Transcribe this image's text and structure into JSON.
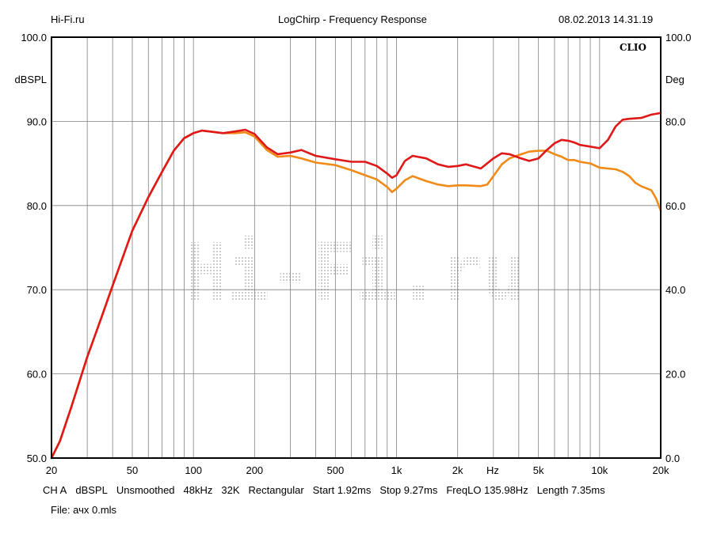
{
  "header": {
    "site": "Hi-Fi.ru",
    "title": "LogChirp - Frequency Response",
    "datetime": "08.02.2013 14.31.19"
  },
  "watermark": {
    "text": "Hi-Fi.ru"
  },
  "footer": {
    "params": [
      "CH A",
      "dBSPL",
      "Unsmoothed",
      "48kHz",
      "32K",
      "Rectangular",
      "Start 1.92ms",
      "Stop 9.27ms",
      "FreqLO 135.98Hz",
      "Length 7.35ms"
    ],
    "file": "File: ачх 0.mls"
  },
  "chart_data": {
    "type": "line",
    "brand_label": "CLIO",
    "xscale": "log",
    "xlim": [
      20,
      20000
    ],
    "ylim": [
      50,
      100
    ],
    "y2lim": [
      0,
      100
    ],
    "ylabel": "dBSPL",
    "y2label": "Deg",
    "xunit_label": "Hz",
    "grid": true,
    "y_ticks": [
      {
        "value": 50,
        "label": "50.0"
      },
      {
        "value": 60,
        "label": "60.0"
      },
      {
        "value": 70,
        "label": "70.0"
      },
      {
        "value": 80,
        "label": "80.0"
      },
      {
        "value": 90,
        "label": "90.0"
      },
      {
        "value": 100,
        "label": "100.0"
      }
    ],
    "y2_ticks": [
      {
        "value": 50,
        "label": "0.0"
      },
      {
        "value": 60,
        "label": "20.0"
      },
      {
        "value": 70,
        "label": "40.0"
      },
      {
        "value": 80,
        "label": "60.0"
      },
      {
        "value": 90,
        "label": "80.0"
      },
      {
        "value": 100,
        "label": "100.0"
      }
    ],
    "x_ticks": [
      {
        "value": 20,
        "label": "20"
      },
      {
        "value": 50,
        "label": "50"
      },
      {
        "value": 100,
        "label": "100"
      },
      {
        "value": 200,
        "label": "200"
      },
      {
        "value": 500,
        "label": "500"
      },
      {
        "value": 1000,
        "label": "1k"
      },
      {
        "value": 2000,
        "label": "2k"
      },
      {
        "value": 5000,
        "label": "5k"
      },
      {
        "value": 10000,
        "label": "10k"
      },
      {
        "value": 20000,
        "label": "20k"
      }
    ],
    "series": [
      {
        "color": "#e01818",
        "points": [
          [
            20,
            50
          ],
          [
            22,
            52
          ],
          [
            25,
            56
          ],
          [
            30,
            62
          ],
          [
            35,
            66.5
          ],
          [
            40,
            70.5
          ],
          [
            50,
            77
          ],
          [
            60,
            81
          ],
          [
            70,
            84
          ],
          [
            80,
            86.5
          ],
          [
            90,
            88
          ],
          [
            100,
            88.6
          ],
          [
            110,
            88.9
          ],
          [
            120,
            88.8
          ],
          [
            140,
            88.6
          ],
          [
            160,
            88.8
          ],
          [
            180,
            89
          ],
          [
            200,
            88.5
          ],
          [
            230,
            86.9
          ],
          [
            260,
            86.1
          ],
          [
            300,
            86.3
          ],
          [
            340,
            86.6
          ],
          [
            400,
            85.9
          ],
          [
            500,
            85.5
          ],
          [
            600,
            85.2
          ],
          [
            700,
            85.2
          ],
          [
            800,
            84.7
          ],
          [
            900,
            83.8
          ],
          [
            950,
            83.3
          ],
          [
            1000,
            83.6
          ],
          [
            1100,
            85.3
          ],
          [
            1200,
            85.9
          ],
          [
            1400,
            85.6
          ],
          [
            1600,
            84.9
          ],
          [
            1800,
            84.6
          ],
          [
            2000,
            84.7
          ],
          [
            2200,
            84.9
          ],
          [
            2600,
            84.4
          ],
          [
            3000,
            85.6
          ],
          [
            3300,
            86.2
          ],
          [
            3600,
            86.1
          ],
          [
            4000,
            85.7
          ],
          [
            4500,
            85.3
          ],
          [
            5000,
            85.6
          ],
          [
            5500,
            86.6
          ],
          [
            6000,
            87.4
          ],
          [
            6500,
            87.8
          ],
          [
            7000,
            87.7
          ],
          [
            7500,
            87.5
          ],
          [
            8000,
            87.2
          ],
          [
            9000,
            87.0
          ],
          [
            10000,
            86.8
          ],
          [
            11000,
            87.8
          ],
          [
            12000,
            89.4
          ],
          [
            13000,
            90.2
          ],
          [
            14000,
            90.3
          ],
          [
            16000,
            90.4
          ],
          [
            18000,
            90.8
          ],
          [
            20000,
            91.0
          ]
        ]
      },
      {
        "color": "#f08a18",
        "points": [
          [
            20,
            50
          ],
          [
            22,
            52
          ],
          [
            25,
            56
          ],
          [
            30,
            62
          ],
          [
            35,
            66.5
          ],
          [
            40,
            70.5
          ],
          [
            50,
            77
          ],
          [
            60,
            81
          ],
          [
            70,
            84
          ],
          [
            80,
            86.5
          ],
          [
            90,
            88
          ],
          [
            100,
            88.6
          ],
          [
            110,
            88.9
          ],
          [
            120,
            88.8
          ],
          [
            140,
            88.6
          ],
          [
            160,
            88.6
          ],
          [
            180,
            88.7
          ],
          [
            200,
            88.2
          ],
          [
            230,
            86.6
          ],
          [
            260,
            85.8
          ],
          [
            300,
            85.9
          ],
          [
            340,
            85.6
          ],
          [
            400,
            85.1
          ],
          [
            500,
            84.8
          ],
          [
            600,
            84.2
          ],
          [
            700,
            83.6
          ],
          [
            800,
            83.1
          ],
          [
            900,
            82.2
          ],
          [
            950,
            81.6
          ],
          [
            1000,
            82.0
          ],
          [
            1100,
            83.0
          ],
          [
            1200,
            83.5
          ],
          [
            1400,
            82.9
          ],
          [
            1600,
            82.5
          ],
          [
            1800,
            82.3
          ],
          [
            2000,
            82.4
          ],
          [
            2200,
            82.4
          ],
          [
            2600,
            82.3
          ],
          [
            2800,
            82.5
          ],
          [
            3000,
            83.5
          ],
          [
            3300,
            84.9
          ],
          [
            3600,
            85.6
          ],
          [
            4000,
            86.0
          ],
          [
            4500,
            86.4
          ],
          [
            5000,
            86.5
          ],
          [
            5500,
            86.5
          ],
          [
            6000,
            86.1
          ],
          [
            6500,
            85.8
          ],
          [
            7000,
            85.4
          ],
          [
            7500,
            85.4
          ],
          [
            8000,
            85.2
          ],
          [
            9000,
            85.0
          ],
          [
            10000,
            84.5
          ],
          [
            12000,
            84.3
          ],
          [
            13000,
            84.0
          ],
          [
            14000,
            83.5
          ],
          [
            15000,
            82.7
          ],
          [
            16000,
            82.3
          ],
          [
            18000,
            81.8
          ],
          [
            19000,
            80.8
          ],
          [
            20000,
            79.4
          ]
        ]
      }
    ]
  }
}
